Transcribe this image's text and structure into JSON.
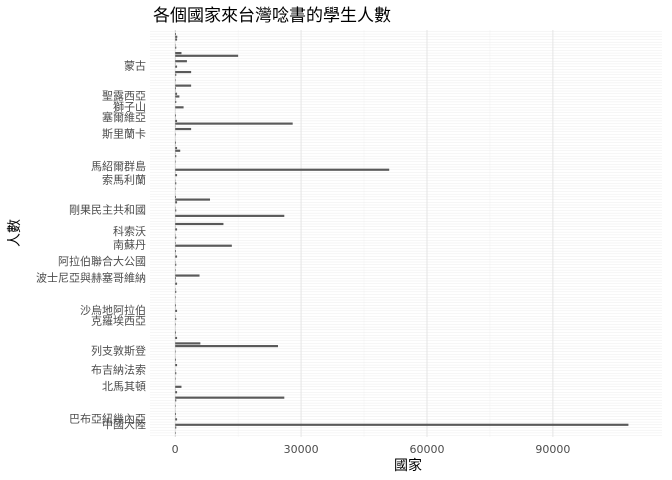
{
  "chart_data": {
    "type": "hbar",
    "title": "各個國家來台灣唸書的學生人數",
    "x_label": "國家",
    "y_label": "人數",
    "color": "#595959",
    "grid": true,
    "xlim": [
      -6000,
      116000
    ],
    "xticks": [
      0,
      30000,
      60000,
      90000
    ],
    "categories": [
      null,
      null,
      null,
      null,
      "中國大陸",
      null,
      "巴布亞紐幾內亞",
      null,
      null,
      null,
      null,
      null,
      null,
      null,
      null,
      null,
      null,
      null,
      "北馬其頓",
      null,
      null,
      null,
      null,
      null,
      "布吉納法索",
      null,
      null,
      null,
      null,
      null,
      null,
      "列支敦斯登",
      null,
      null,
      null,
      null,
      null,
      null,
      null,
      null,
      null,
      null,
      "克羅埃西亞",
      null,
      null,
      null,
      "沙烏地阿拉伯",
      null,
      null,
      null,
      null,
      null,
      null,
      null,
      null,
      null,
      null,
      null,
      "波士尼亞與赫塞哥維納",
      null,
      null,
      null,
      null,
      null,
      "阿拉伯聯合大公國",
      null,
      null,
      null,
      null,
      null,
      "南蘇丹",
      null,
      null,
      null,
      null,
      "科索沃",
      null,
      null,
      null,
      null,
      null,
      null,
      null,
      "剛果民主共和國",
      null,
      null,
      null,
      null,
      null,
      null,
      null,
      null,
      null,
      null,
      "索馬利蘭",
      null,
      null,
      null,
      null,
      "馬紹爾群島",
      null,
      null,
      null,
      null,
      null,
      null,
      null,
      null,
      null,
      null,
      null,
      "斯里蘭卡",
      null,
      null,
      null,
      null,
      null,
      "塞爾維亞",
      null,
      null,
      null,
      "獅子山",
      null,
      null,
      null,
      "聖露西亞",
      null,
      null,
      null,
      null,
      null,
      null,
      null,
      null,
      null,
      null,
      "蒙古",
      null,
      null,
      null,
      null,
      null,
      null,
      null,
      null,
      null,
      null,
      null,
      null,
      null
    ],
    "values": [
      30,
      120,
      15,
      260,
      108000,
      5,
      450,
      60,
      190,
      40,
      30,
      120,
      15,
      260,
      26000,
      5,
      450,
      60,
      1500,
      40,
      30,
      120,
      15,
      260,
      80,
      5,
      450,
      60,
      190,
      40,
      30,
      120,
      15,
      24500,
      6000,
      5,
      450,
      60,
      190,
      40,
      30,
      120,
      15,
      260,
      80,
      5,
      450,
      60,
      190,
      40,
      30,
      120,
      15,
      260,
      80,
      5,
      450,
      60,
      190,
      5800,
      30,
      120,
      15,
      260,
      80,
      5,
      450,
      60,
      190,
      40,
      13500,
      120,
      15,
      260,
      80,
      5,
      450,
      60,
      11500,
      40,
      30,
      26000,
      15,
      260,
      80,
      5,
      450,
      8300,
      190,
      40,
      30,
      120,
      15,
      260,
      80,
      5,
      450,
      60,
      51000,
      40,
      30,
      120,
      15,
      260,
      80,
      1200,
      450,
      60,
      190,
      40,
      30,
      120,
      15,
      3800,
      80,
      28000,
      450,
      60,
      190,
      40,
      30,
      2000,
      15,
      260,
      80,
      1000,
      450,
      60,
      190,
      3800,
      30,
      120,
      15,
      260,
      3800,
      5,
      450,
      60,
      2800,
      40,
      15000,
      1500,
      15,
      260,
      80,
      5,
      450,
      500,
      190,
      40
    ]
  }
}
